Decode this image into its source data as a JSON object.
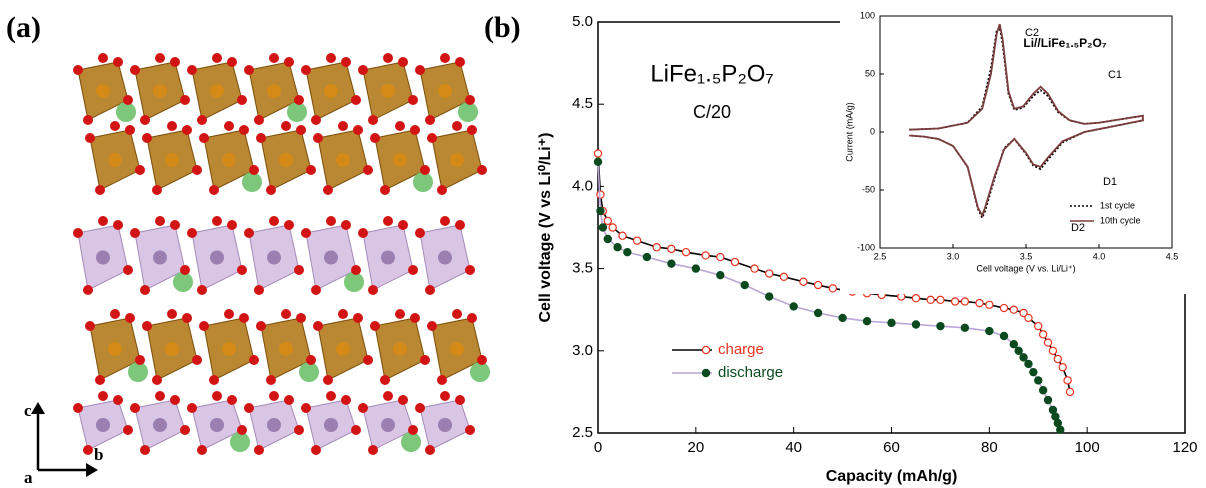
{
  "panel_labels": [
    "(a)",
    "(b)"
  ],
  "structure_axes": [
    "c",
    "b",
    "a"
  ],
  "chart_data": [
    {
      "type": "line",
      "title": "LiFe₁.₅P₂O₇",
      "subtitle": "C/20",
      "x_label": "Capacity (mAh/g)",
      "y_label": "Cell voltage (V vs Li⁰/Li⁺)",
      "xlim": [
        0,
        120
      ],
      "xticks": [
        0,
        20,
        40,
        60,
        80,
        100,
        120
      ],
      "ylim": [
        2.5,
        5.0
      ],
      "yticks": [
        2.5,
        {
          "value": 3,
          "label": "3.0"
        },
        3.5,
        {
          "value": 4,
          "label": "4.0"
        },
        4.5,
        {
          "value": 5,
          "label": "5.0"
        }
      ],
      "series": [
        {
          "name": "charge",
          "color": "#e8321e",
          "line_color": "#000000",
          "marker": "open",
          "x": [
            0,
            0.5,
            1,
            2,
            3,
            5,
            8,
            12,
            15,
            18,
            22,
            25,
            28,
            32,
            35,
            38,
            42,
            45,
            48,
            52,
            55,
            58,
            62,
            65,
            68,
            70,
            73,
            75,
            78,
            80,
            83,
            85,
            87,
            88,
            90,
            91,
            92,
            93,
            94,
            95,
            96,
            96.5
          ],
          "values": [
            4.2,
            3.95,
            3.85,
            3.79,
            3.75,
            3.7,
            3.67,
            3.63,
            3.62,
            3.6,
            3.58,
            3.57,
            3.54,
            3.5,
            3.47,
            3.45,
            3.42,
            3.4,
            3.38,
            3.36,
            3.35,
            3.34,
            3.33,
            3.32,
            3.31,
            3.31,
            3.3,
            3.3,
            3.29,
            3.28,
            3.26,
            3.25,
            3.23,
            3.2,
            3.15,
            3.1,
            3.05,
            3.0,
            2.95,
            2.9,
            2.82,
            2.75
          ]
        },
        {
          "name": "discharge",
          "color": "#0b4a1e",
          "line_color": "#b9a6d6",
          "marker": "filled",
          "x": [
            0,
            0.5,
            1,
            2,
            4,
            6,
            10,
            15,
            20,
            25,
            30,
            35,
            40,
            45,
            50,
            55,
            60,
            65,
            70,
            75,
            80,
            83,
            85,
            86,
            87,
            88,
            89,
            90,
            91,
            92,
            93,
            93.5,
            94,
            94.5
          ],
          "values": [
            4.15,
            3.85,
            3.75,
            3.68,
            3.63,
            3.6,
            3.57,
            3.53,
            3.5,
            3.46,
            3.4,
            3.33,
            3.27,
            3.23,
            3.2,
            3.18,
            3.17,
            3.16,
            3.15,
            3.14,
            3.12,
            3.09,
            3.04,
            3.0,
            2.96,
            2.92,
            2.87,
            2.82,
            2.76,
            2.7,
            2.64,
            2.6,
            2.56,
            2.52
          ]
        }
      ]
    },
    {
      "type": "line",
      "title": "Li//LiFe₁.₅P₂O₇",
      "x_label": "Cell voltage (V vs. Li/Li⁺)",
      "y_label": "Current (mA/g)",
      "xlim": [
        2.5,
        4.5
      ],
      "xticks": [
        2.5,
        {
          "value": 3,
          "label": "3.0"
        },
        3.5,
        {
          "value": 4,
          "label": "4.0"
        },
        4.5
      ],
      "ylim": [
        -100,
        100
      ],
      "yticks": [
        -100,
        -50,
        0,
        50,
        100
      ],
      "annotations": [
        "C2",
        "C1",
        "D1",
        "D2"
      ],
      "series": [
        {
          "name": "1st cycle",
          "color": "#000000",
          "dash": "dotted",
          "x": [
            2.7,
            2.9,
            3.1,
            3.2,
            3.26,
            3.3,
            3.32,
            3.34,
            3.38,
            3.42,
            3.48,
            3.55,
            3.6,
            3.65,
            3.72,
            3.8,
            3.9,
            4.0,
            4.1,
            4.3,
            4.3,
            4.1,
            3.9,
            3.75,
            3.65,
            3.6,
            3.55,
            3.5,
            3.42,
            3.35,
            3.28,
            3.22,
            3.2,
            3.17,
            3.1,
            3.0,
            2.9,
            2.8,
            2.7
          ],
          "values": [
            2,
            3,
            8,
            22,
            55,
            88,
            90,
            76,
            33,
            19,
            21,
            31,
            36,
            31,
            17,
            10,
            7,
            8,
            10,
            14,
            10,
            5,
            0,
            -9,
            -24,
            -32,
            -29,
            -19,
            -6,
            -14,
            -42,
            -68,
            -74,
            -66,
            -30,
            -12,
            -6,
            -4,
            -3
          ]
        },
        {
          "name": "10th cycle",
          "color": "#7a3b3b",
          "dash": "solid",
          "x": [
            2.7,
            2.9,
            3.1,
            3.2,
            3.26,
            3.3,
            3.32,
            3.34,
            3.38,
            3.42,
            3.48,
            3.55,
            3.6,
            3.65,
            3.72,
            3.8,
            3.9,
            4.0,
            4.1,
            4.3,
            4.3,
            4.1,
            3.9,
            3.75,
            3.65,
            3.6,
            3.55,
            3.5,
            3.42,
            3.35,
            3.28,
            3.22,
            3.2,
            3.17,
            3.1,
            3.0,
            2.9,
            2.8,
            2.7
          ],
          "values": [
            2,
            3,
            8,
            20,
            50,
            85,
            93,
            80,
            35,
            20,
            22,
            33,
            39,
            33,
            18,
            10,
            7,
            8,
            10,
            14,
            10,
            5,
            0,
            -8,
            -22,
            -30,
            -28,
            -18,
            -6,
            -15,
            -40,
            -65,
            -72,
            -65,
            -30,
            -12,
            -6,
            -4,
            -3
          ]
        }
      ]
    }
  ]
}
